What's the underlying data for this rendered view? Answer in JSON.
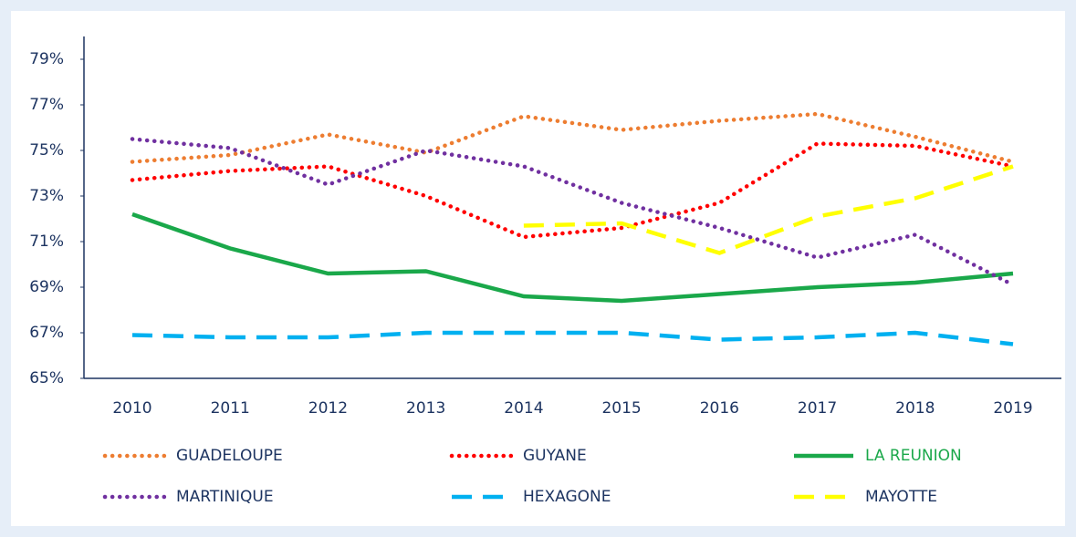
{
  "chart_data": {
    "type": "line",
    "categories": [
      "2010",
      "2011",
      "2012",
      "2013",
      "2014",
      "2015",
      "2016",
      "2017",
      "2018",
      "2019"
    ],
    "series": [
      {
        "name": "GUADELOUPE",
        "color": "#ed7d31",
        "style": "dotted",
        "values": [
          74.5,
          74.8,
          75.7,
          74.9,
          76.5,
          75.9,
          76.3,
          76.6,
          75.6,
          74.5
        ]
      },
      {
        "name": "GUYANE",
        "color": "#ff0000",
        "style": "dotted",
        "values": [
          73.7,
          74.1,
          74.3,
          73.0,
          71.2,
          71.6,
          72.7,
          75.3,
          75.2,
          74.3
        ]
      },
      {
        "name": "LA REUNION",
        "color": "#1aa84a",
        "style": "solid",
        "values": [
          72.2,
          70.7,
          69.6,
          69.7,
          68.6,
          68.4,
          68.7,
          69.0,
          69.2,
          69.6
        ]
      },
      {
        "name": "MARTINIQUE",
        "color": "#7030a0",
        "style": "dotted",
        "values": [
          75.5,
          75.1,
          73.5,
          75.0,
          74.3,
          72.7,
          71.6,
          70.3,
          71.3,
          69.1
        ]
      },
      {
        "name": "HEXAGONE",
        "color": "#00b0f0",
        "style": "dashed",
        "values": [
          66.9,
          66.8,
          66.8,
          67.0,
          67.0,
          67.0,
          66.7,
          66.8,
          67.0,
          66.5
        ]
      },
      {
        "name": "MAYOTTE",
        "color": "#ffff00",
        "style": "dashed",
        "values": [
          null,
          null,
          null,
          null,
          71.7,
          71.8,
          70.5,
          72.1,
          72.9,
          74.3
        ]
      }
    ],
    "ylim": [
      65,
      79
    ],
    "yticks": [
      {
        "value": 65,
        "label": "65%"
      },
      {
        "value": 67,
        "label": "67%"
      },
      {
        "value": 69,
        "label": "69%"
      },
      {
        "value": 71,
        "label": "71%"
      },
      {
        "value": 73,
        "label": "73%"
      },
      {
        "value": 75,
        "label": "75%"
      },
      {
        "value": 77,
        "label": "77%"
      },
      {
        "value": 79,
        "label": "79%"
      }
    ]
  }
}
